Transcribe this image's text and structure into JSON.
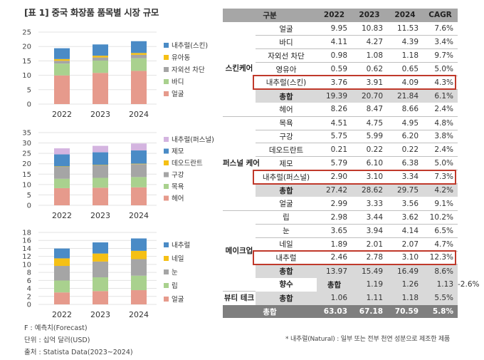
{
  "title": "[표 1] 중국 화장품 품목별 시장 규모",
  "colors": {
    "internal_blue": "#4a8bc6",
    "yellow": "#f5c015",
    "gray": "#a5a5a5",
    "green": "#a9d18e",
    "salmon": "#e69a8c",
    "purple": "#d4b4e0",
    "highlight_red": "#c0392b"
  },
  "chart_data": [
    {
      "type": "bar",
      "stacked": true,
      "categories": [
        "2022",
        "2023",
        "2024"
      ],
      "ylim": [
        0,
        25
      ],
      "yticks": [
        0,
        5,
        10,
        15,
        20,
        25
      ],
      "series": [
        {
          "name": "얼굴",
          "values": [
            9.95,
            10.83,
            11.53
          ],
          "color": "#e69a8c"
        },
        {
          "name": "바디",
          "values": [
            4.11,
            4.27,
            4.39
          ],
          "color": "#a9d18e"
        },
        {
          "name": "자외선 차단",
          "values": [
            0.98,
            1.08,
            1.18
          ],
          "color": "#a5a5a5"
        },
        {
          "name": "유아동",
          "values": [
            0.59,
            0.62,
            0.65
          ],
          "color": "#f5c015"
        },
        {
          "name": "내추럴(스킨)",
          "values": [
            3.76,
            3.91,
            4.09
          ],
          "color": "#4a8bc6"
        }
      ]
    },
    {
      "type": "bar",
      "stacked": true,
      "categories": [
        "2022",
        "2023",
        "2024"
      ],
      "ylim": [
        0,
        35
      ],
      "yticks": [
        0,
        5,
        10,
        15,
        20,
        25,
        30,
        35
      ],
      "series": [
        {
          "name": "헤어",
          "values": [
            8.26,
            8.47,
            8.66
          ],
          "color": "#e69a8c"
        },
        {
          "name": "목욕",
          "values": [
            4.51,
            4.75,
            4.95
          ],
          "color": "#a9d18e"
        },
        {
          "name": "구강",
          "values": [
            5.75,
            5.99,
            6.2
          ],
          "color": "#a5a5a5"
        },
        {
          "name": "데오드란트",
          "values": [
            0.21,
            0.22,
            0.22
          ],
          "color": "#f5c015"
        },
        {
          "name": "제모",
          "values": [
            5.79,
            6.1,
            6.38
          ],
          "color": "#4a8bc6"
        },
        {
          "name": "내추럴(퍼스널)",
          "values": [
            2.9,
            3.1,
            3.34
          ],
          "color": "#d4b4e0"
        }
      ]
    },
    {
      "type": "bar",
      "stacked": true,
      "categories": [
        "2022",
        "2023",
        "2024"
      ],
      "ylim": [
        0,
        18
      ],
      "yticks": [
        0,
        2,
        4,
        6,
        8,
        10,
        12,
        14,
        16,
        18
      ],
      "series": [
        {
          "name": "얼굴",
          "values": [
            2.99,
            3.33,
            3.56
          ],
          "color": "#e69a8c"
        },
        {
          "name": "립",
          "values": [
            2.98,
            3.44,
            3.62
          ],
          "color": "#a9d18e"
        },
        {
          "name": "눈",
          "values": [
            3.65,
            3.94,
            4.14
          ],
          "color": "#a5a5a5"
        },
        {
          "name": "네일",
          "values": [
            1.89,
            2.01,
            2.07
          ],
          "color": "#f5c015"
        },
        {
          "name": "내추럴",
          "values": [
            2.46,
            2.78,
            3.1
          ],
          "color": "#4a8bc6"
        }
      ]
    },
    {
      "type": "table",
      "columns": [
        "구분",
        "2022",
        "2023",
        "2024",
        "CAGR"
      ],
      "rows": [
        {
          "cat": "스킨케어",
          "span": 7,
          "label": "얼굴",
          "v": [
            "9.95",
            "10.83",
            "11.53",
            "7.6%"
          ],
          "kind": "row"
        },
        {
          "label": "바디",
          "v": [
            "4.11",
            "4.27",
            "4.39",
            "3.4%"
          ],
          "kind": "row"
        },
        {
          "label": "자외선 차단",
          "v": [
            "0.98",
            "1.08",
            "1.18",
            "9.7%"
          ],
          "kind": "row"
        },
        {
          "label": "영유아",
          "v": [
            "0.59",
            "0.62",
            "0.65",
            "5.0%"
          ],
          "kind": "row"
        },
        {
          "label": "내추럴(스킨)",
          "v": [
            "3.76",
            "3.91",
            "4.09",
            "4.3%"
          ],
          "kind": "hl"
        },
        {
          "label": "총합",
          "v": [
            "19.39",
            "20.70",
            "21.84",
            "6.1%"
          ],
          "kind": "total"
        },
        {
          "label": "헤어",
          "v": [
            "8.26",
            "8.47",
            "8.66",
            "2.4%"
          ],
          "kind": "row"
        },
        {
          "cat": "퍼스널 케어",
          "span": 7,
          "label": "목욕",
          "v": [
            "4.51",
            "4.75",
            "4.95",
            "4.8%"
          ],
          "kind": "row"
        },
        {
          "label": "구강",
          "v": [
            "5.75",
            "5.99",
            "6.20",
            "3.8%"
          ],
          "kind": "row"
        },
        {
          "label": "데오드란트",
          "v": [
            "0.21",
            "0.22",
            "0.22",
            "2.4%"
          ],
          "kind": "row"
        },
        {
          "label": "제모",
          "v": [
            "5.79",
            "6.10",
            "6.38",
            "5.0%"
          ],
          "kind": "row"
        },
        {
          "label": "내추럴(퍼스널)",
          "v": [
            "2.90",
            "3.10",
            "3.34",
            "7.3%"
          ],
          "kind": "hl"
        },
        {
          "label": "총합",
          "v": [
            "27.42",
            "28.62",
            "29.75",
            "4.2%"
          ],
          "kind": "total"
        },
        {
          "label": "얼굴",
          "v": [
            "2.99",
            "3.33",
            "3.56",
            "9.1%"
          ],
          "kind": "row"
        },
        {
          "cat": "메이크업",
          "span": 6,
          "label": "립",
          "v": [
            "2.98",
            "3.44",
            "3.62",
            "10.2%"
          ],
          "kind": "row"
        },
        {
          "label": "눈",
          "v": [
            "3.65",
            "3.94",
            "4.14",
            "6.5%"
          ],
          "kind": "row"
        },
        {
          "label": "네일",
          "v": [
            "1.89",
            "2.01",
            "2.07",
            "4.7%"
          ],
          "kind": "row"
        },
        {
          "label": "내추럴",
          "v": [
            "2.46",
            "2.78",
            "3.10",
            "12.3%"
          ],
          "kind": "hl"
        },
        {
          "label": "총합",
          "v": [
            "13.97",
            "15.49",
            "16.49",
            "8.6%"
          ],
          "kind": "total"
        },
        {
          "cat": "향수",
          "span": 1,
          "label": "총합",
          "v": [
            "1.19",
            "1.26",
            "1.13",
            "-2.6%"
          ],
          "kind": "total"
        },
        {
          "cat": "뷰티 테크",
          "span": 1,
          "label": "총합",
          "v": [
            "1.06",
            "1.11",
            "1.18",
            "5.5%"
          ],
          "kind": "total"
        },
        {
          "cat": "총합",
          "span": 1,
          "label": "",
          "v": [
            "63.03",
            "67.18",
            "70.59",
            "5.8%"
          ],
          "kind": "grand"
        }
      ]
    }
  ],
  "notes": {
    "forecast": "F : 예측치(Forecast)",
    "unit": "단위 : 십억 달러(USD)",
    "source": "출처 : Statista Data(2023~2024)"
  },
  "footnote": "* 내추럴(Natural) : 일부 또는 전부 천연 성분으로 제조한 제품"
}
